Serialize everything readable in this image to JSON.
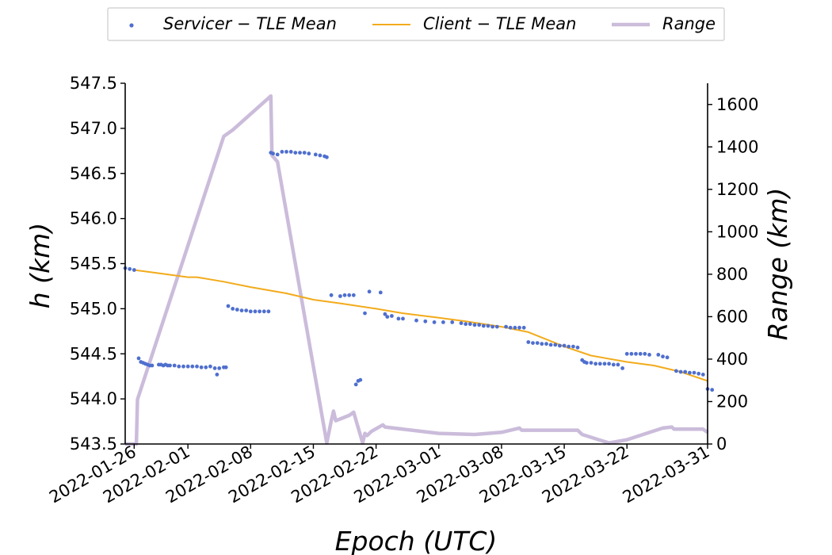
{
  "chart_data": {
    "type": "line",
    "xlabel": "Epoch (UTC)",
    "ylabel_left": "h (km)",
    "ylabel_right": "Range (km)",
    "x_range": [
      "2022-01-25",
      "2022-03-31"
    ],
    "ylim_left": [
      543.5,
      547.5
    ],
    "ylim_right": [
      0,
      1700
    ],
    "x_ticks": [
      "2022-01-26",
      "2022-02-01",
      "2022-02-08",
      "2022-02-15",
      "2022-02-22",
      "2022-03-01",
      "2022-03-08",
      "2022-03-15",
      "2022-03-22",
      "2022-03-31"
    ],
    "y_ticks_left": [
      "543.5",
      "544.0",
      "544.5",
      "545.0",
      "545.5",
      "546.0",
      "546.5",
      "547.0",
      "547.5"
    ],
    "y_ticks_right": [
      "0",
      "200",
      "400",
      "600",
      "800",
      "1000",
      "1200",
      "1400",
      "1600"
    ],
    "legend": [
      {
        "label": "Servicer − TLE Mean",
        "marker": "dot"
      },
      {
        "label": "Client − TLE Mean",
        "marker": "line"
      },
      {
        "label": "Range",
        "marker": "thick-line"
      }
    ],
    "colors": {
      "servicer": "#4f6fce",
      "client": "#f2ab1b",
      "range": "#cbbcdb"
    },
    "series": [
      {
        "name": "Servicer − TLE Mean",
        "kind": "scatter",
        "axis": "left",
        "points": [
          [
            "2022-01-25T00",
            545.45
          ],
          [
            "2022-01-25T12",
            545.44
          ],
          [
            "2022-01-26T00",
            545.43
          ],
          [
            "2022-01-26T12",
            544.45
          ],
          [
            "2022-01-26T18",
            544.41
          ],
          [
            "2022-01-27T00",
            544.4
          ],
          [
            "2022-01-27T06",
            544.39
          ],
          [
            "2022-01-27T12",
            544.38
          ],
          [
            "2022-01-27T18",
            544.37
          ],
          [
            "2022-01-28T00",
            544.37
          ],
          [
            "2022-01-28T18",
            544.38
          ],
          [
            "2022-01-29T00",
            544.38
          ],
          [
            "2022-01-29T06",
            544.37
          ],
          [
            "2022-01-29T12",
            544.38
          ],
          [
            "2022-01-29T18",
            544.37
          ],
          [
            "2022-01-30T00",
            544.37
          ],
          [
            "2022-01-30T12",
            544.37
          ],
          [
            "2022-01-31T00",
            544.36
          ],
          [
            "2022-01-31T12",
            544.36
          ],
          [
            "2022-02-01T00",
            544.36
          ],
          [
            "2022-02-01T12",
            544.36
          ],
          [
            "2022-02-02T00",
            544.36
          ],
          [
            "2022-02-02T12",
            544.35
          ],
          [
            "2022-02-03T00",
            544.35
          ],
          [
            "2022-02-03T12",
            544.36
          ],
          [
            "2022-02-04T00",
            544.34
          ],
          [
            "2022-02-04T06",
            544.27
          ],
          [
            "2022-02-04T12",
            544.34
          ],
          [
            "2022-02-05T00",
            544.35
          ],
          [
            "2022-02-05T06",
            544.35
          ],
          [
            "2022-02-05T12",
            545.03
          ],
          [
            "2022-02-06T00",
            545.0
          ],
          [
            "2022-02-06T12",
            544.99
          ],
          [
            "2022-02-07T00",
            544.98
          ],
          [
            "2022-02-07T12",
            544.98
          ],
          [
            "2022-02-08T00",
            544.97
          ],
          [
            "2022-02-08T12",
            544.97
          ],
          [
            "2022-02-09T00",
            544.97
          ],
          [
            "2022-02-09T12",
            544.97
          ],
          [
            "2022-02-10T00",
            544.97
          ],
          [
            "2022-02-10T06",
            546.73
          ],
          [
            "2022-02-10T12",
            546.72
          ],
          [
            "2022-02-11T00",
            546.71
          ],
          [
            "2022-02-11T12",
            546.74
          ],
          [
            "2022-02-12T00",
            546.74
          ],
          [
            "2022-02-12T12",
            546.74
          ],
          [
            "2022-02-13T00",
            546.73
          ],
          [
            "2022-02-13T12",
            546.73
          ],
          [
            "2022-02-14T00",
            546.73
          ],
          [
            "2022-02-14T12",
            546.72
          ],
          [
            "2022-02-15T06",
            546.71
          ],
          [
            "2022-02-15T18",
            546.7
          ],
          [
            "2022-02-16T06",
            546.69
          ],
          [
            "2022-02-16T12",
            546.68
          ],
          [
            "2022-02-17T00",
            545.15
          ],
          [
            "2022-02-18T00",
            545.14
          ],
          [
            "2022-02-18T12",
            545.15
          ],
          [
            "2022-02-19T00",
            545.15
          ],
          [
            "2022-02-19T12",
            545.15
          ],
          [
            "2022-02-19T18",
            544.16
          ],
          [
            "2022-02-20T00",
            544.2
          ],
          [
            "2022-02-20T06",
            544.21
          ],
          [
            "2022-02-20T18",
            544.95
          ],
          [
            "2022-02-21T06",
            545.19
          ],
          [
            "2022-02-22T12",
            545.18
          ],
          [
            "2022-02-23T00",
            544.94
          ],
          [
            "2022-02-23T06",
            544.91
          ],
          [
            "2022-02-23T18",
            544.92
          ],
          [
            "2022-02-24T12",
            544.89
          ],
          [
            "2022-02-25T00",
            544.89
          ],
          [
            "2022-02-26T12",
            544.87
          ],
          [
            "2022-02-27T12",
            544.86
          ],
          [
            "2022-02-28T12",
            544.85
          ],
          [
            "2022-03-01T12",
            544.85
          ],
          [
            "2022-03-02T12",
            544.85
          ],
          [
            "2022-03-03T12",
            544.84
          ],
          [
            "2022-03-04T00",
            544.83
          ],
          [
            "2022-03-04T12",
            544.83
          ],
          [
            "2022-03-05T00",
            544.82
          ],
          [
            "2022-03-05T12",
            544.82
          ],
          [
            "2022-03-06T00",
            544.81
          ],
          [
            "2022-03-06T12",
            544.81
          ],
          [
            "2022-03-07T00",
            544.8
          ],
          [
            "2022-03-07T12",
            544.8
          ],
          [
            "2022-03-08T12",
            544.8
          ],
          [
            "2022-03-09T00",
            544.79
          ],
          [
            "2022-03-09T12",
            544.79
          ],
          [
            "2022-03-10T00",
            544.79
          ],
          [
            "2022-03-10T12",
            544.79
          ],
          [
            "2022-03-11T00",
            544.63
          ],
          [
            "2022-03-11T12",
            544.62
          ],
          [
            "2022-03-12T00",
            544.62
          ],
          [
            "2022-03-12T12",
            544.61
          ],
          [
            "2022-03-13T00",
            544.61
          ],
          [
            "2022-03-13T12",
            544.6
          ],
          [
            "2022-03-14T00",
            544.6
          ],
          [
            "2022-03-14T12",
            544.59
          ],
          [
            "2022-03-15T00",
            544.59
          ],
          [
            "2022-03-15T12",
            544.58
          ],
          [
            "2022-03-16T00",
            544.58
          ],
          [
            "2022-03-16T12",
            544.57
          ],
          [
            "2022-03-17T00",
            544.43
          ],
          [
            "2022-03-17T06",
            544.41
          ],
          [
            "2022-03-17T12",
            544.4
          ],
          [
            "2022-03-18T00",
            544.4
          ],
          [
            "2022-03-18T12",
            544.39
          ],
          [
            "2022-03-19T00",
            544.39
          ],
          [
            "2022-03-19T12",
            544.39
          ],
          [
            "2022-03-20T00",
            544.39
          ],
          [
            "2022-03-20T12",
            544.38
          ],
          [
            "2022-03-21T00",
            544.38
          ],
          [
            "2022-03-21T12",
            544.34
          ],
          [
            "2022-03-22T00",
            544.5
          ],
          [
            "2022-03-22T12",
            544.5
          ],
          [
            "2022-03-23T00",
            544.5
          ],
          [
            "2022-03-23T12",
            544.5
          ],
          [
            "2022-03-24T00",
            544.5
          ],
          [
            "2022-03-24T12",
            544.49
          ],
          [
            "2022-03-25T12",
            544.49
          ],
          [
            "2022-03-26T00",
            544.47
          ],
          [
            "2022-03-26T12",
            544.46
          ],
          [
            "2022-03-27T12",
            544.31
          ],
          [
            "2022-03-28T00",
            544.3
          ],
          [
            "2022-03-28T12",
            544.3
          ],
          [
            "2022-03-29T00",
            544.29
          ],
          [
            "2022-03-29T12",
            544.29
          ],
          [
            "2022-03-30T00",
            544.28
          ],
          [
            "2022-03-30T12",
            544.27
          ],
          [
            "2022-03-31T00",
            544.11
          ],
          [
            "2022-03-31T12",
            544.1
          ]
        ]
      },
      {
        "name": "Client − TLE Mean",
        "kind": "line",
        "axis": "left",
        "points": [
          [
            "2022-01-26",
            545.43
          ],
          [
            "2022-01-29",
            545.39
          ],
          [
            "2022-02-01",
            545.35
          ],
          [
            "2022-02-02",
            545.35
          ],
          [
            "2022-02-05",
            545.3
          ],
          [
            "2022-02-08",
            545.24
          ],
          [
            "2022-02-12",
            545.17
          ],
          [
            "2022-02-15",
            545.1
          ],
          [
            "2022-02-18",
            545.06
          ],
          [
            "2022-02-22",
            545.0
          ],
          [
            "2022-02-25",
            544.95
          ],
          [
            "2022-03-01",
            544.9
          ],
          [
            "2022-03-04",
            544.86
          ],
          [
            "2022-03-08",
            544.8
          ],
          [
            "2022-03-11",
            544.74
          ],
          [
            "2022-03-15",
            544.58
          ],
          [
            "2022-03-18",
            544.48
          ],
          [
            "2022-03-22",
            544.41
          ],
          [
            "2022-03-25",
            544.37
          ],
          [
            "2022-03-28",
            544.3
          ],
          [
            "2022-03-31",
            544.2
          ]
        ]
      },
      {
        "name": "Range",
        "kind": "line",
        "axis": "right",
        "points": [
          [
            "2022-01-25",
            0
          ],
          [
            "2022-01-26T00",
            0
          ],
          [
            "2022-01-26T06",
            0
          ],
          [
            "2022-01-26T09",
            210
          ],
          [
            "2022-02-05",
            1450
          ],
          [
            "2022-02-06",
            1480
          ],
          [
            "2022-02-10T06",
            1640
          ],
          [
            "2022-02-10T09",
            1360
          ],
          [
            "2022-02-11",
            1330
          ],
          [
            "2022-02-16T12",
            5
          ],
          [
            "2022-02-17",
            110
          ],
          [
            "2022-02-17T06",
            155
          ],
          [
            "2022-02-17T12",
            110
          ],
          [
            "2022-02-19",
            135
          ],
          [
            "2022-02-19T12",
            150
          ],
          [
            "2022-02-20T12",
            5
          ],
          [
            "2022-02-20T18",
            50
          ],
          [
            "2022-02-21",
            40
          ],
          [
            "2022-02-21T12",
            60
          ],
          [
            "2022-02-22T18",
            90
          ],
          [
            "2022-02-23",
            80
          ],
          [
            "2022-03-01",
            50
          ],
          [
            "2022-03-05",
            45
          ],
          [
            "2022-03-08",
            55
          ],
          [
            "2022-03-10",
            75
          ],
          [
            "2022-03-10T06",
            65
          ],
          [
            "2022-03-16T12",
            65
          ],
          [
            "2022-03-17",
            45
          ],
          [
            "2022-03-20",
            5
          ],
          [
            "2022-03-22",
            20
          ],
          [
            "2022-03-26",
            75
          ],
          [
            "2022-03-27",
            80
          ],
          [
            "2022-03-27T06",
            70
          ],
          [
            "2022-03-30",
            70
          ],
          [
            "2022-03-30T12",
            70
          ],
          [
            "2022-03-31",
            55
          ]
        ]
      }
    ]
  }
}
